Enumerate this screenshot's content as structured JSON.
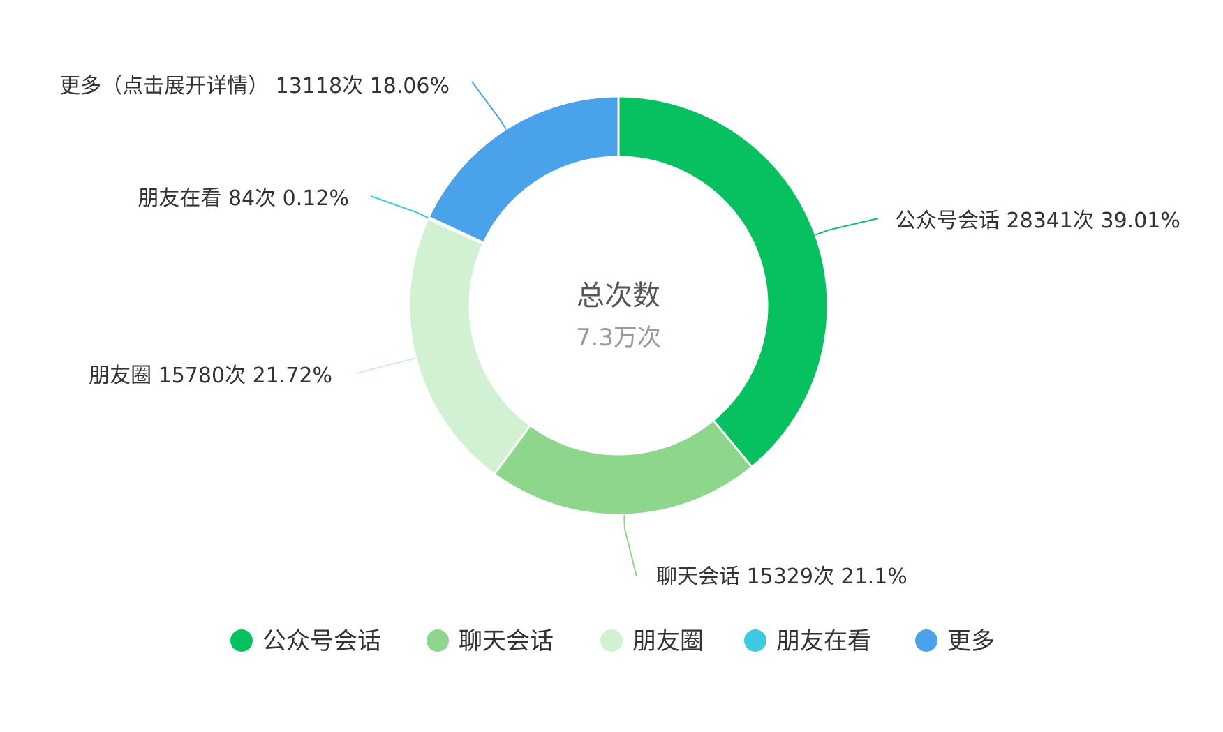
{
  "chart_data": {
    "type": "pie",
    "center": {
      "title": "总次数",
      "value": "7.3万次"
    },
    "series": [
      {
        "name": "公众号会话",
        "value": 28341,
        "percent": "39.01%",
        "label": "公众号会话 28341次 39.01%",
        "color": "#07c160"
      },
      {
        "name": "聊天会话",
        "value": 15329,
        "percent": "21.1%",
        "label": "聊天会话 15329次 21.1%",
        "color": "#8fd68d"
      },
      {
        "name": "朋友圈",
        "value": 15780,
        "percent": "21.72%",
        "label": "朋友圈 15780次 21.72%",
        "color": "#d2f0d2"
      },
      {
        "name": "朋友在看",
        "value": 84,
        "percent": "0.12%",
        "label": "朋友在看 84次 0.12%",
        "color": "#3cc9e1"
      },
      {
        "name": "更多",
        "value": 13118,
        "percent": "18.06%",
        "label": "更多（点击展开详情） 13118次 18.06%",
        "color": "#4aa3ea"
      }
    ],
    "legend": [
      {
        "name": "公众号会话",
        "color": "#07c160"
      },
      {
        "name": "聊天会话",
        "color": "#8fd68d"
      },
      {
        "name": "朋友圈",
        "color": "#d2f0d2"
      },
      {
        "name": "朋友在看",
        "color": "#3cc9e1"
      },
      {
        "name": "更多",
        "color": "#4aa3ea"
      }
    ],
    "legend_position": "bottom"
  }
}
